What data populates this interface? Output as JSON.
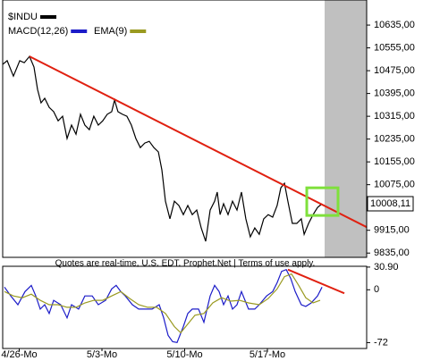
{
  "chart_data": [
    {
      "type": "line",
      "note": "Quotes are real-time, U.S. EDT. Prophet.Net | Terms of use apply.",
      "xlim": [
        -1,
        21
      ],
      "ylim": [
        9820,
        10723
      ],
      "yticks": [
        {
          "value": 10635,
          "label": "10635,00"
        },
        {
          "value": 10555,
          "label": "10555,00"
        },
        {
          "value": 10475,
          "label": "10475,00"
        },
        {
          "value": 10395,
          "label": "10395,00"
        },
        {
          "value": 10315,
          "label": "10315,00"
        },
        {
          "value": 10235,
          "label": "10235,00"
        },
        {
          "value": 10155,
          "label": "10155,00"
        },
        {
          "value": 10075,
          "label": "10075,00"
        },
        {
          "value": 9915,
          "label": "9915,00"
        },
        {
          "value": 9835,
          "label": "9835,00"
        }
      ],
      "last_price": {
        "value": 10008.11,
        "label": "10008,11"
      },
      "shade": {
        "color": "#c0c0c0",
        "x": [
          18.46,
          21
        ]
      },
      "trendline": {
        "color": "#e02010",
        "x": [
          0.62,
          21
        ],
        "values": [
          10525,
          9926
        ]
      },
      "highlight": {
        "color": "#7fe03c",
        "xlim": [
          17.38,
          19.27
        ],
        "ylim": [
          9967,
          10064
        ]
      },
      "series": [
        {
          "name": "$INDU",
          "color": "#000000",
          "x": [
            -1,
            -0.73,
            -0.35,
            0.03,
            0.3,
            0.62,
            0.89,
            1.11,
            1.32,
            1.54,
            1.81,
            2.08,
            2.35,
            2.62,
            2.89,
            3.16,
            3.43,
            3.7,
            3.97,
            4.24,
            4.51,
            4.78,
            5.05,
            5.32,
            5.59,
            5.76,
            5.97,
            6.24,
            6.51,
            6.78,
            7.05,
            7.32,
            7.59,
            7.86,
            8.14,
            8.41,
            8.62,
            8.84,
            9.11,
            9.38,
            9.65,
            9.92,
            10.19,
            10.46,
            10.73,
            11,
            11.27,
            11.54,
            11.81,
            11.97,
            12.14,
            12.35,
            12.62,
            12.89,
            13.16,
            13.43,
            13.7,
            13.97,
            14.24,
            14.51,
            14.78,
            15.05,
            15.32,
            15.59,
            15.81,
            16.03,
            16.24,
            16.51,
            16.78,
            17.05,
            17.22,
            17.49,
            17.76,
            18.03,
            18.3
          ],
          "values": [
            10497,
            10510,
            10456,
            10510,
            10503,
            10525,
            10488,
            10409,
            10362,
            10378,
            10346,
            10331,
            10299,
            10315,
            10237,
            10284,
            10252,
            10322,
            10284,
            10268,
            10315,
            10284,
            10299,
            10322,
            10331,
            10372,
            10331,
            10322,
            10315,
            10284,
            10237,
            10205,
            10221,
            10227,
            10205,
            10190,
            10127,
            10017,
            9955,
            10017,
            10002,
            9970,
            10002,
            9970,
            9986,
            9923,
            9876,
            9986,
            10017,
            10049,
            9970,
            10008,
            9970,
            10017,
            9986,
            10049,
            9955,
            9892,
            9923,
            9901,
            9955,
            9970,
            9961,
            10002,
            10064,
            10080,
            10017,
            9939,
            9939,
            9955,
            9901,
            9939,
            9970,
            9995,
            10008.11
          ]
        }
      ]
    },
    {
      "type": "line",
      "xlim": [
        -1,
        21
      ],
      "xticks": [
        {
          "value": 0,
          "label": "4/26-Mo"
        },
        {
          "value": 5,
          "label": "5/3-Mo"
        },
        {
          "value": 10,
          "label": "5/10-Mo"
        },
        {
          "value": 15,
          "label": "5/17-Mo"
        }
      ],
      "ylim": [
        -80,
        32
      ],
      "yticks": [
        {
          "value": 30.9,
          "label": "30.90"
        },
        0,
        -72
      ],
      "trendline": {
        "color": "#e02010",
        "x": [
          16.24,
          19.65
        ],
        "values": [
          27.5,
          -4.8
        ]
      },
      "series": [
        {
          "name": "MACD(12,26)",
          "color": "#1c1cc8",
          "x": [
            -0.89,
            -0.51,
            -0.08,
            0.35,
            0.73,
            1,
            1.27,
            1.54,
            1.81,
            2.08,
            2.51,
            2.89,
            3.16,
            3.59,
            3.97,
            4.41,
            4.78,
            5.22,
            5.59,
            5.86,
            6.14,
            6.41,
            6.84,
            7.22,
            7.59,
            8.03,
            8.46,
            8.73,
            9,
            9.27,
            9.54,
            9.92,
            10.19,
            10.46,
            10.84,
            11.16,
            11.54,
            11.81,
            12.08,
            12.35,
            12.62,
            12.89,
            13.16,
            13.43,
            13.86,
            14.24,
            14.51,
            14.95,
            15.32,
            15.59,
            15.86,
            16.14,
            16.41,
            16.68,
            17.05,
            17.32,
            17.65,
            18.03,
            18.3
          ],
          "values": [
            3.6,
            -8.4,
            -20.3,
            -2.4,
            6,
            -8.4,
            -26.3,
            -20.3,
            -32.3,
            -14.4,
            -20.3,
            -38.3,
            -20.3,
            -26.3,
            -8.4,
            -8.4,
            -20.3,
            -14.4,
            1.2,
            6,
            -2.4,
            -8.4,
            -20.3,
            -26.3,
            -26.3,
            -26.3,
            -20.3,
            -38.3,
            -62.2,
            -70.6,
            -71.8,
            -50.2,
            -32.3,
            -26.3,
            -26.3,
            -44.3,
            -8.4,
            6,
            -2.4,
            -20.3,
            -8.4,
            -26.3,
            -20.3,
            -2.4,
            -26.3,
            -26.3,
            -20.3,
            -8.4,
            -2.4,
            9.6,
            25.1,
            27.5,
            15.5,
            -2.4,
            -20.3,
            -22.7,
            -17.9,
            -8.4,
            3.6
          ]
        },
        {
          "name": "EMA(9)",
          "color": "#9a9a20",
          "x": [
            -0.89,
            -0.35,
            0.19,
            0.73,
            1.27,
            1.81,
            2.35,
            2.89,
            3.43,
            3.97,
            4.51,
            5.05,
            5.59,
            6.14,
            6.68,
            7.22,
            7.76,
            8.3,
            8.84,
            9.38,
            9.76,
            10.19,
            10.62,
            11.16,
            11.7,
            12.24,
            12.78,
            13.32,
            13.86,
            14.51,
            15.05,
            15.59,
            16.03,
            16.46,
            16.89,
            17.32,
            17.76,
            18.19
          ],
          "values": [
            -2.4,
            -8.4,
            -10.8,
            -6,
            -14.4,
            -20.3,
            -20.3,
            -23.9,
            -23.9,
            -17.9,
            -14.4,
            -14.4,
            -8.4,
            -2.4,
            -12,
            -20.3,
            -23.9,
            -23.9,
            -32.3,
            -50.2,
            -58.6,
            -46.6,
            -34.7,
            -32.3,
            -17.9,
            -10.8,
            -15.5,
            -14.4,
            -17.9,
            -20.3,
            -12,
            1.2,
            17.9,
            21.5,
            6,
            -10.8,
            -17.9,
            -14.4
          ]
        }
      ]
    }
  ]
}
